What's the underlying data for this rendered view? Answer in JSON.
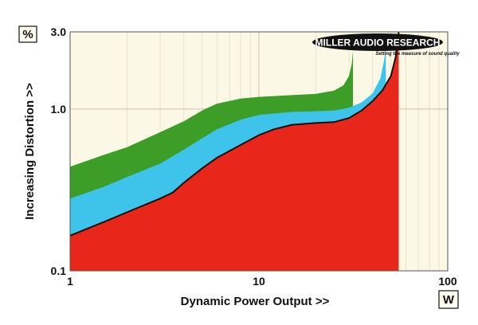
{
  "chart_data": {
    "type": "area",
    "xlabel": "Dynamic Power Output >>",
    "ylabel": "Increasing Distortion >>",
    "x_unit": "W",
    "y_unit": "%",
    "x_scale": "log",
    "y_scale": "log",
    "xlim": [
      1,
      100
    ],
    "ylim": [
      0.1,
      3.0
    ],
    "x_ticks": [
      "1",
      "10",
      "100"
    ],
    "y_ticks": [
      "0.1",
      "1.0",
      "3.0"
    ],
    "grid": true,
    "background": "#fbf8e6",
    "series": [
      {
        "color": "#3c9e26",
        "points": [
          [
            1,
            0.44
          ],
          [
            1.5,
            0.52
          ],
          [
            2,
            0.58
          ],
          [
            3,
            0.72
          ],
          [
            4,
            0.84
          ],
          [
            5,
            0.98
          ],
          [
            6,
            1.08
          ],
          [
            8,
            1.16
          ],
          [
            10,
            1.19
          ],
          [
            15,
            1.22
          ],
          [
            20,
            1.24
          ],
          [
            25,
            1.3
          ],
          [
            28,
            1.4
          ],
          [
            30,
            1.6
          ],
          [
            31,
            1.9
          ],
          [
            31.5,
            2.3
          ]
        ],
        "end_x": 31.5
      },
      {
        "color": "#3ec4ea",
        "points": [
          [
            1,
            0.28
          ],
          [
            1.5,
            0.33
          ],
          [
            2,
            0.38
          ],
          [
            3,
            0.46
          ],
          [
            4,
            0.56
          ],
          [
            5,
            0.66
          ],
          [
            6,
            0.75
          ],
          [
            8,
            0.86
          ],
          [
            10,
            0.92
          ],
          [
            15,
            0.96
          ],
          [
            20,
            0.97
          ],
          [
            25,
            0.98
          ],
          [
            30,
            1.02
          ],
          [
            35,
            1.1
          ],
          [
            40,
            1.25
          ],
          [
            44,
            1.55
          ],
          [
            46,
            2.0
          ],
          [
            47,
            2.4
          ]
        ],
        "end_x": 47
      },
      {
        "color": "#e8271a",
        "points": [
          [
            1,
            0.165
          ],
          [
            1.5,
            0.2
          ],
          [
            2,
            0.23
          ],
          [
            3,
            0.28
          ],
          [
            3.5,
            0.305
          ],
          [
            4,
            0.35
          ],
          [
            5,
            0.43
          ],
          [
            6,
            0.5
          ],
          [
            8,
            0.6
          ],
          [
            10,
            0.69
          ],
          [
            12,
            0.75
          ],
          [
            15,
            0.8
          ],
          [
            20,
            0.82
          ],
          [
            25,
            0.83
          ],
          [
            30,
            0.88
          ],
          [
            35,
            0.98
          ],
          [
            40,
            1.12
          ],
          [
            45,
            1.3
          ],
          [
            50,
            1.6
          ],
          [
            53,
            2.1
          ],
          [
            55,
            3.0
          ]
        ],
        "end_x": 55
      }
    ],
    "logo": {
      "text": "MILLER AUDIO RESEARCH",
      "tagline": "Setting the measure of sound quality"
    }
  }
}
